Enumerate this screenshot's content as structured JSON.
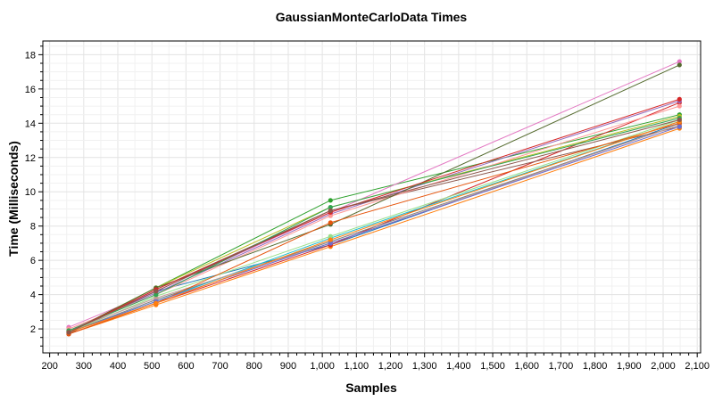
{
  "chart_data": {
    "type": "line",
    "title": "GaussianMonteCarloData Times",
    "xlabel": "Samples",
    "ylabel": "Time (Milliseconds)",
    "xlim": [
      180,
      2110
    ],
    "ylim": [
      0.6,
      18.8
    ],
    "x_ticks": [
      200,
      300,
      400,
      500,
      600,
      700,
      800,
      900,
      1000,
      1100,
      1200,
      1300,
      1400,
      1500,
      1600,
      1700,
      1800,
      1900,
      2000,
      2100
    ],
    "x_tick_labels": [
      "200",
      "300",
      "400",
      "500",
      "600",
      "700",
      "800",
      "900",
      "1,000",
      "1,100",
      "1,200",
      "1,300",
      "1,400",
      "1,500",
      "1,600",
      "1,700",
      "1,800",
      "1,900",
      "2,000",
      "2,100"
    ],
    "y_ticks": [
      2,
      4,
      6,
      8,
      10,
      12,
      14,
      16,
      18
    ],
    "y_tick_labels": [
      "2",
      "4",
      "6",
      "8",
      "10",
      "12",
      "14",
      "16",
      "18"
    ],
    "grid": true,
    "legend": "none",
    "x": [
      256,
      512,
      1024,
      2048
    ],
    "series": [
      {
        "color": "#1f77b4",
        "values": [
          1.8,
          4.2,
          6.9,
          14.0
        ]
      },
      {
        "color": "#ff7f0e",
        "values": [
          1.7,
          3.4,
          6.8,
          13.7
        ]
      },
      {
        "color": "#2ca02c",
        "values": [
          1.8,
          4.4,
          9.5,
          14.5
        ]
      },
      {
        "color": "#d62728",
        "values": [
          1.7,
          3.5,
          6.9,
          15.2
        ]
      },
      {
        "color": "#9467bd",
        "values": [
          1.9,
          4.1,
          8.7,
          15.3
        ]
      },
      {
        "color": "#8c564b",
        "values": [
          1.7,
          4.3,
          8.9,
          13.8
        ]
      },
      {
        "color": "#e377c2",
        "values": [
          2.1,
          4.2,
          8.8,
          17.6
        ]
      },
      {
        "color": "#7f7f7f",
        "values": [
          1.8,
          3.7,
          7.1,
          13.9
        ]
      },
      {
        "color": "#bcbd22",
        "values": [
          1.8,
          4.4,
          9.1,
          14.4
        ]
      },
      {
        "color": "#17becf",
        "values": [
          1.8,
          3.6,
          7.3,
          14.1
        ]
      },
      {
        "color": "#ff9896",
        "values": [
          2.0,
          4.0,
          8.6,
          15.0
        ]
      },
      {
        "color": "#98df8a",
        "values": [
          1.8,
          3.9,
          7.4,
          14.2
        ]
      },
      {
        "color": "#556b2f",
        "values": [
          1.8,
          4.4,
          8.1,
          17.4
        ]
      },
      {
        "color": "#c49c94",
        "values": [
          1.9,
          3.8,
          7.0,
          13.9
        ]
      },
      {
        "color": "#e6550d",
        "values": [
          1.7,
          3.5,
          8.2,
          14.0
        ]
      },
      {
        "color": "#31a354",
        "values": [
          1.9,
          4.0,
          9.1,
          14.3
        ]
      },
      {
        "color": "#d62728",
        "values": [
          1.8,
          4.3,
          8.8,
          15.4
        ]
      },
      {
        "color": "#6b6ecf",
        "values": [
          1.8,
          3.6,
          7.0,
          13.8
        ]
      },
      {
        "color": "#ff7f0e",
        "values": [
          1.8,
          3.5,
          7.2,
          14.1
        ]
      },
      {
        "color": "#8c564b",
        "values": [
          1.8,
          4.2,
          8.9,
          14.2
        ]
      }
    ]
  }
}
